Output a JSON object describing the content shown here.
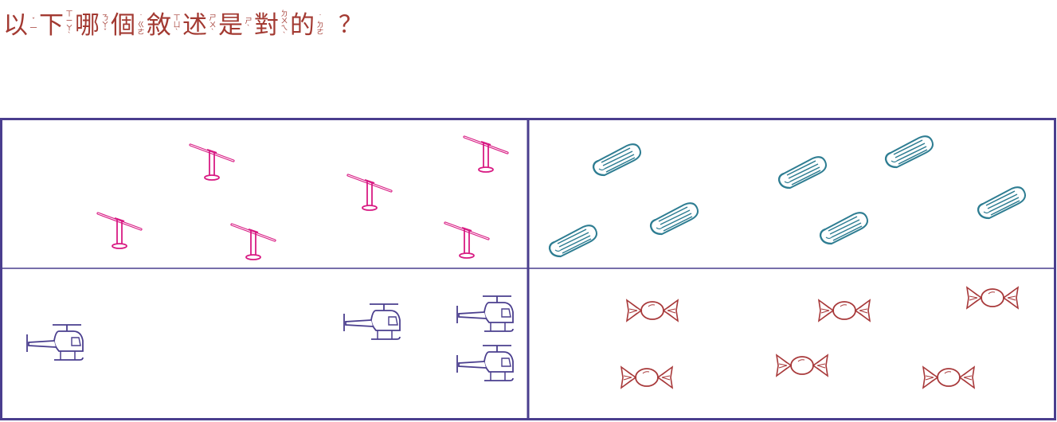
{
  "question": {
    "chars": [
      {
        "ch": "以",
        "zy": "ˇ一"
      },
      {
        "ch": "下",
        "zy": "ㄒㄧㄚˋ"
      },
      {
        "ch": "哪",
        "zy": "ㄋㄚˇ"
      },
      {
        "ch": "個",
        "zy": "˙ㄍㄜ"
      },
      {
        "ch": "敘",
        "zy": "ㄒㄩˋ"
      },
      {
        "ch": "述",
        "zy": "ㄕㄨˋ"
      },
      {
        "ch": "是",
        "zy": "ㄕˋ"
      },
      {
        "ch": "對",
        "zy": "ㄉㄨㄟˋ"
      },
      {
        "ch": "的",
        "zy": "˙ㄉㄜ"
      }
    ],
    "mark": "？"
  },
  "colors": {
    "border": "#4a3e8e",
    "seesaw": "#d81b83",
    "eraser": "#2e7d92",
    "helicopter": "#4a3e8e",
    "candy": "#a8393a",
    "question": "#a33a32"
  },
  "panels": {
    "seesaws": {
      "item": "seesaw-icon",
      "count": 6
    },
    "erasers": {
      "item": "eraser-icon",
      "count": 7
    },
    "helicopters": {
      "item": "helicopter-icon",
      "count": 4
    },
    "candies": {
      "item": "candy-icon",
      "count": 6
    }
  }
}
